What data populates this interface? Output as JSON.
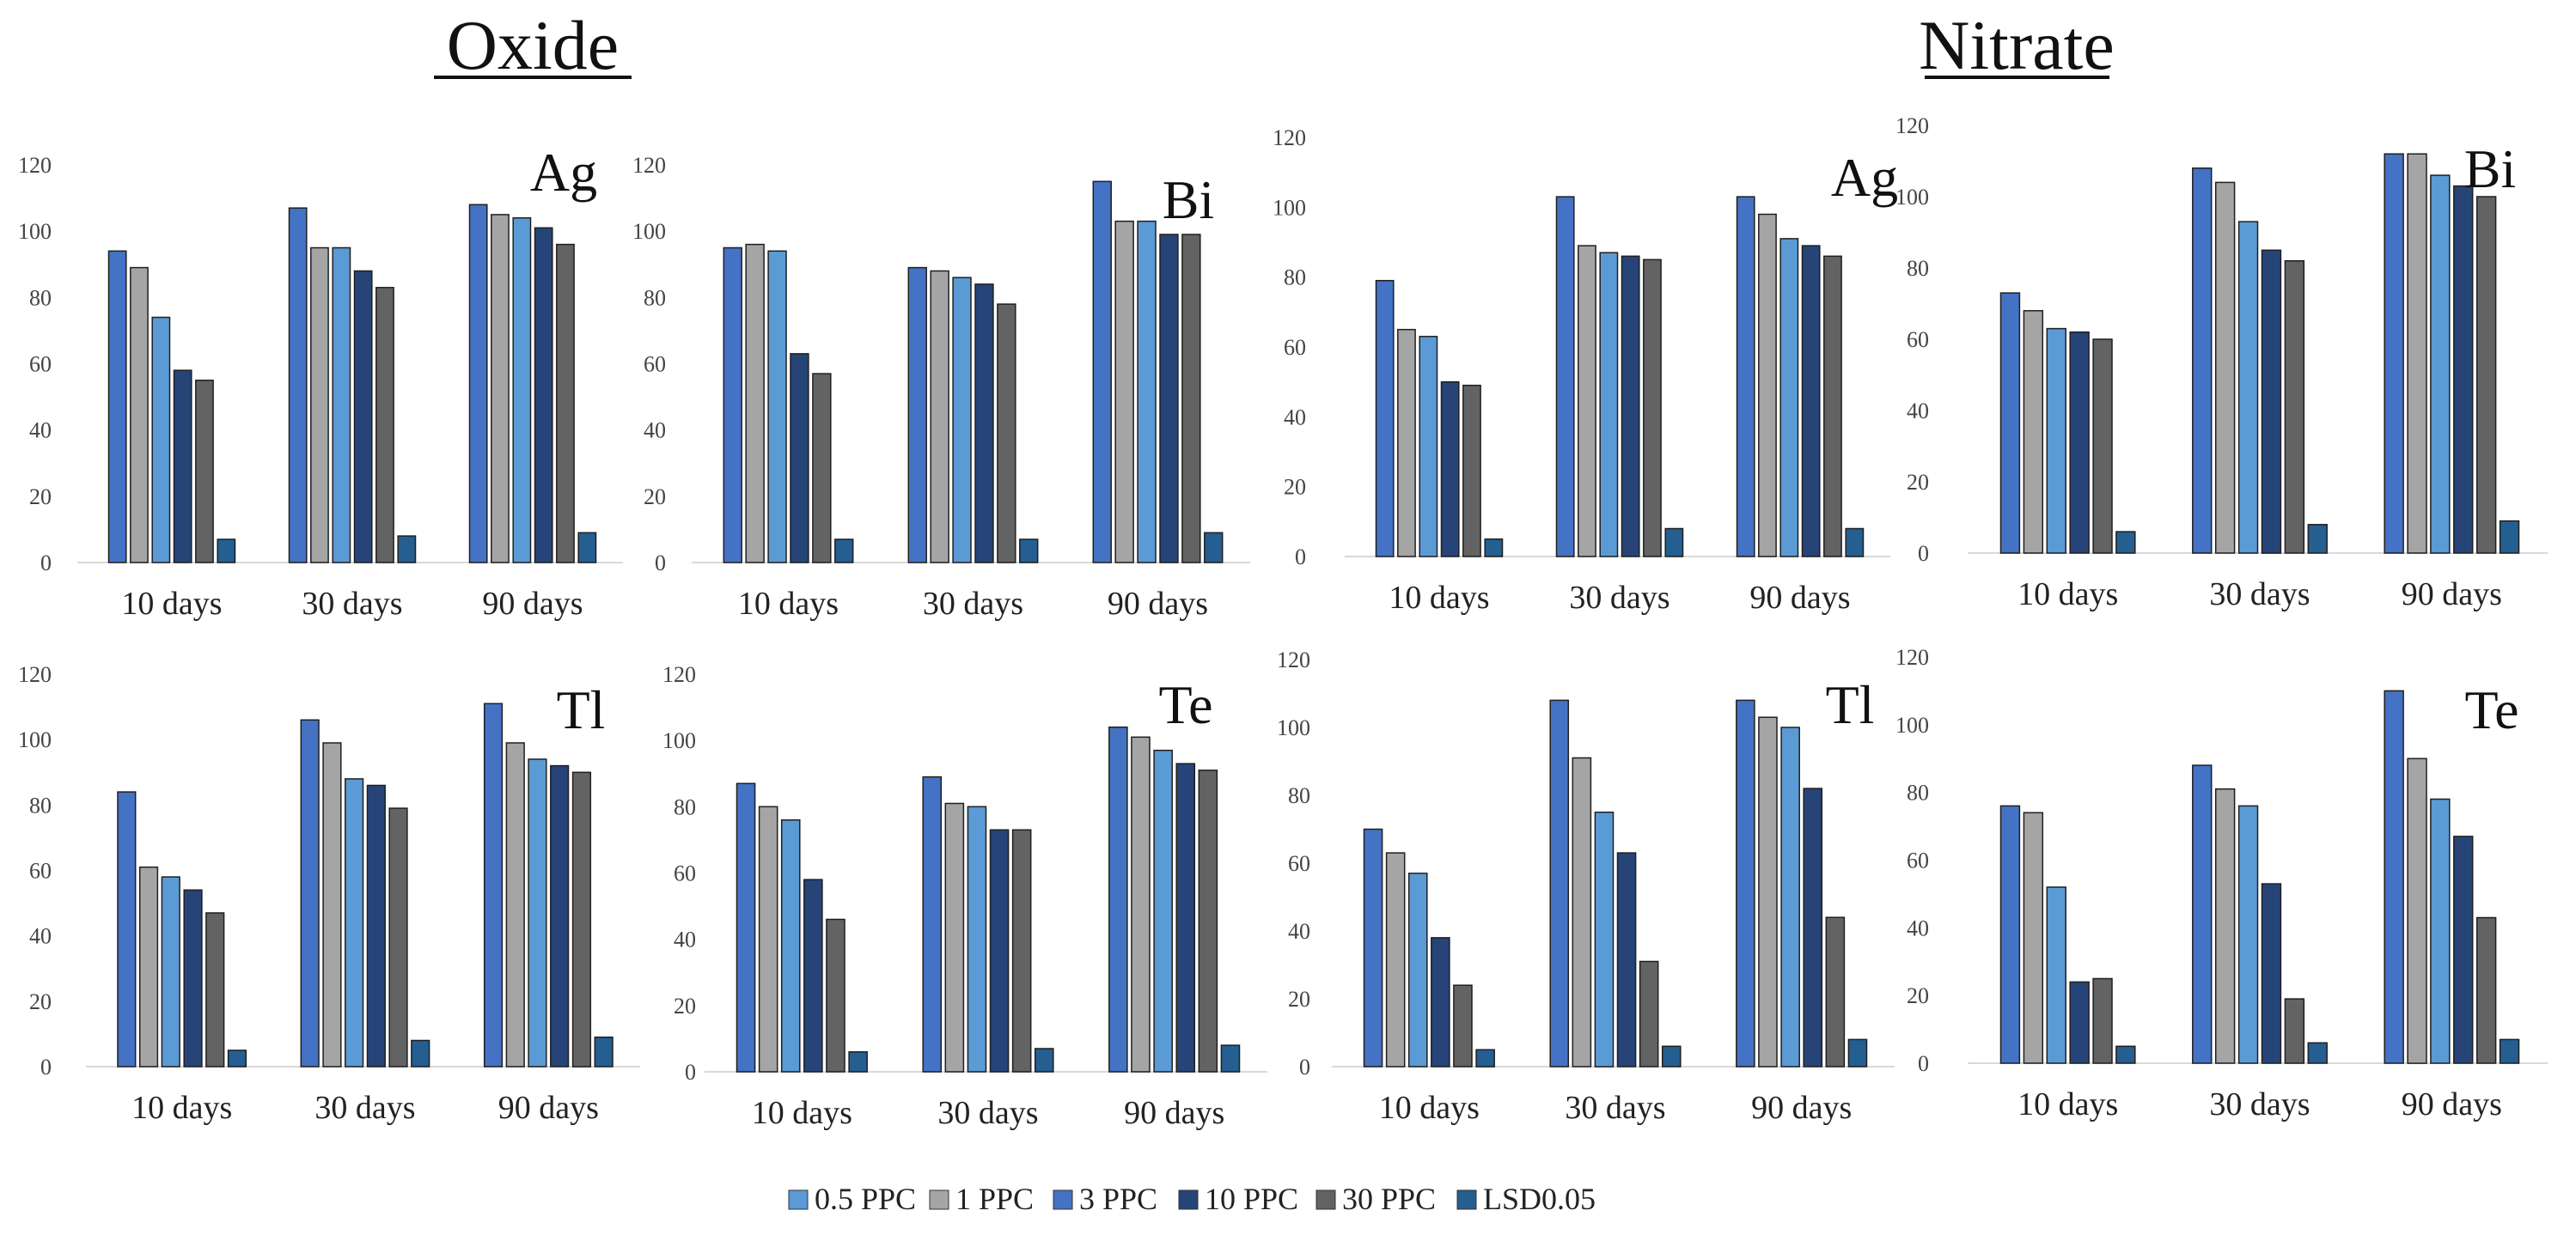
{
  "sections": {
    "oxide": "Oxide",
    "nitrate": "Nitrate"
  },
  "legend": {
    "items": [
      {
        "label": "0.5 PPC",
        "color": "#5b9bd5"
      },
      {
        "label": "1 PPC",
        "color": "#a5a5a5"
      },
      {
        "label": "3 PPC",
        "color": "#4472c4"
      },
      {
        "label": "10 PPC",
        "color": "#264478"
      },
      {
        "label": "30 PPC",
        "color": "#636363"
      },
      {
        "label": "LSD0.05",
        "color": "#255e91"
      }
    ]
  },
  "chart_data": [
    {
      "type": "bar",
      "group": "Oxide",
      "element": "Ag",
      "categories": [
        "10 days",
        "30 days",
        "90 days"
      ],
      "yticks": [
        "0",
        "20",
        "40",
        "60",
        "80",
        "100",
        "120"
      ],
      "ylim": [
        0,
        120
      ],
      "series": [
        {
          "name": "3 PPC",
          "values": [
            94,
            107,
            108
          ]
        },
        {
          "name": "1 PPC",
          "values": [
            89,
            95,
            105
          ]
        },
        {
          "name": "0.5 PPC",
          "values": [
            74,
            95,
            104
          ]
        },
        {
          "name": "10 PPC",
          "values": [
            58,
            88,
            101
          ]
        },
        {
          "name": "30 PPC",
          "values": [
            55,
            83,
            96
          ]
        },
        {
          "name": "LSD0.05",
          "values": [
            7,
            8,
            9
          ]
        }
      ]
    },
    {
      "type": "bar",
      "group": "Oxide",
      "element": "Bi",
      "categories": [
        "10 days",
        "30 days",
        "90 days"
      ],
      "yticks": [
        "0",
        "20",
        "40",
        "60",
        "80",
        "100",
        "120"
      ],
      "ylim": [
        0,
        120
      ],
      "series": [
        {
          "name": "3 PPC",
          "values": [
            95,
            89,
            115
          ]
        },
        {
          "name": "1 PPC",
          "values": [
            96,
            88,
            103
          ]
        },
        {
          "name": "0.5 PPC",
          "values": [
            94,
            86,
            103
          ]
        },
        {
          "name": "10 PPC",
          "values": [
            63,
            84,
            99
          ]
        },
        {
          "name": "30 PPC",
          "values": [
            57,
            78,
            99
          ]
        },
        {
          "name": "LSD0.05",
          "values": [
            7,
            7,
            9
          ]
        }
      ]
    },
    {
      "type": "bar",
      "group": "Oxide",
      "element": "Tl",
      "categories": [
        "10 days",
        "30 days",
        "90 days"
      ],
      "yticks": [
        "0",
        "20",
        "40",
        "60",
        "80",
        "100",
        "120"
      ],
      "ylim": [
        0,
        120
      ],
      "series": [
        {
          "name": "3 PPC",
          "values": [
            84,
            106,
            111
          ]
        },
        {
          "name": "1 PPC",
          "values": [
            61,
            99,
            99
          ]
        },
        {
          "name": "0.5 PPC",
          "values": [
            58,
            88,
            94
          ]
        },
        {
          "name": "10 PPC",
          "values": [
            54,
            86,
            92
          ]
        },
        {
          "name": "30 PPC",
          "values": [
            47,
            79,
            90
          ]
        },
        {
          "name": "LSD0.05",
          "values": [
            5,
            8,
            9
          ]
        }
      ]
    },
    {
      "type": "bar",
      "group": "Oxide",
      "element": "Te",
      "categories": [
        "10 days",
        "30 days",
        "90 days"
      ],
      "yticks": [
        "0",
        "20",
        "40",
        "60",
        "80",
        "100",
        "120"
      ],
      "ylim": [
        0,
        120
      ],
      "series": [
        {
          "name": "3 PPC",
          "values": [
            87,
            89,
            104
          ]
        },
        {
          "name": "1 PPC",
          "values": [
            80,
            81,
            101
          ]
        },
        {
          "name": "0.5 PPC",
          "values": [
            76,
            80,
            97
          ]
        },
        {
          "name": "10 PPC",
          "values": [
            58,
            73,
            93
          ]
        },
        {
          "name": "30 PPC",
          "values": [
            46,
            73,
            91
          ]
        },
        {
          "name": "LSD0.05",
          "values": [
            6,
            7,
            8
          ]
        }
      ]
    },
    {
      "type": "bar",
      "group": "Nitrate",
      "element": "Ag",
      "categories": [
        "10 days",
        "30 days",
        "90 days"
      ],
      "yticks": [
        "0",
        "20",
        "40",
        "60",
        "80",
        "100",
        "120"
      ],
      "ylim": [
        0,
        120
      ],
      "series": [
        {
          "name": "3 PPC",
          "values": [
            79,
            103,
            103
          ]
        },
        {
          "name": "1 PPC",
          "values": [
            65,
            89,
            98
          ]
        },
        {
          "name": "0.5 PPC",
          "values": [
            63,
            87,
            91
          ]
        },
        {
          "name": "10 PPC",
          "values": [
            50,
            86,
            89
          ]
        },
        {
          "name": "30 PPC",
          "values": [
            49,
            85,
            86
          ]
        },
        {
          "name": "LSD0.05",
          "values": [
            5,
            8,
            8
          ]
        }
      ]
    },
    {
      "type": "bar",
      "group": "Nitrate",
      "element": "Bi",
      "categories": [
        "10 days",
        "30 days",
        "90 days"
      ],
      "yticks": [
        "0",
        "20",
        "40",
        "60",
        "80",
        "100",
        "120"
      ],
      "ylim": [
        0,
        120
      ],
      "series": [
        {
          "name": "3 PPC",
          "values": [
            73,
            108,
            112
          ]
        },
        {
          "name": "1 PPC",
          "values": [
            68,
            104,
            112
          ]
        },
        {
          "name": "0.5 PPC",
          "values": [
            63,
            93,
            106
          ]
        },
        {
          "name": "10 PPC",
          "values": [
            62,
            85,
            103
          ]
        },
        {
          "name": "30 PPC",
          "values": [
            60,
            82,
            100
          ]
        },
        {
          "name": "LSD0.05",
          "values": [
            6,
            8,
            9
          ]
        }
      ]
    },
    {
      "type": "bar",
      "group": "Nitrate",
      "element": "Tl",
      "categories": [
        "10 days",
        "30 days",
        "90 days"
      ],
      "yticks": [
        "0",
        "20",
        "40",
        "60",
        "80",
        "100",
        "120"
      ],
      "ylim": [
        0,
        120
      ],
      "series": [
        {
          "name": "3 PPC",
          "values": [
            70,
            108,
            108
          ]
        },
        {
          "name": "1 PPC",
          "values": [
            63,
            91,
            103
          ]
        },
        {
          "name": "0.5 PPC",
          "values": [
            57,
            75,
            100
          ]
        },
        {
          "name": "10 PPC",
          "values": [
            38,
            63,
            82
          ]
        },
        {
          "name": "30 PPC",
          "values": [
            24,
            31,
            44
          ]
        },
        {
          "name": "LSD0.05",
          "values": [
            5,
            6,
            8
          ]
        }
      ]
    },
    {
      "type": "bar",
      "group": "Nitrate",
      "element": "Te",
      "categories": [
        "10 days",
        "30 days",
        "90 days"
      ],
      "yticks": [
        "0",
        "20",
        "40",
        "60",
        "80",
        "100",
        "120"
      ],
      "ylim": [
        0,
        120
      ],
      "series": [
        {
          "name": "3 PPC",
          "values": [
            76,
            88,
            110
          ]
        },
        {
          "name": "1 PPC",
          "values": [
            74,
            81,
            90
          ]
        },
        {
          "name": "0.5 PPC",
          "values": [
            52,
            76,
            78
          ]
        },
        {
          "name": "10 PPC",
          "values": [
            24,
            53,
            67
          ]
        },
        {
          "name": "30 PPC",
          "values": [
            25,
            19,
            43
          ]
        },
        {
          "name": "LSD0.05",
          "values": [
            5,
            6,
            7
          ]
        }
      ]
    }
  ]
}
